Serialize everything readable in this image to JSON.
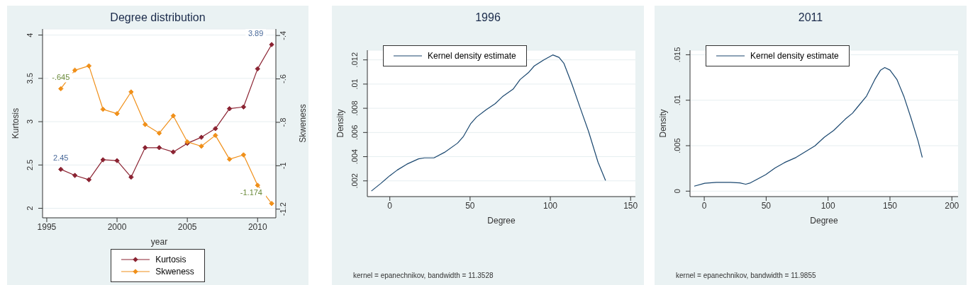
{
  "chart_data": [
    {
      "type": "line",
      "title": "Degree distribution",
      "xlabel": "year",
      "ylabel": "Kurtosis",
      "y2label": "Skweness",
      "x": [
        1996,
        1997,
        1998,
        1999,
        2000,
        2001,
        2002,
        2003,
        2004,
        2005,
        2006,
        2007,
        2008,
        2009,
        2010,
        2011
      ],
      "series": [
        {
          "name": "Kurtosis",
          "color": "#8b2332",
          "values": [
            2.45,
            2.38,
            2.33,
            2.56,
            2.55,
            2.36,
            2.7,
            2.7,
            2.65,
            2.75,
            2.82,
            2.92,
            3.15,
            3.17,
            3.61,
            3.89
          ],
          "value_labels": [
            "2.45",
            null,
            null,
            null,
            null,
            null,
            null,
            null,
            null,
            null,
            null,
            null,
            null,
            null,
            null,
            "3.89"
          ]
        },
        {
          "name": "Skweness",
          "color": "#f0901a",
          "axis": "y2",
          "values": [
            -0.645,
            -0.56,
            -0.54,
            -0.74,
            -0.76,
            -0.66,
            -0.81,
            -0.85,
            -0.77,
            -0.89,
            -0.91,
            -0.86,
            -0.97,
            -0.95,
            -1.09,
            -1.174
          ],
          "value_labels": [
            "-.645",
            null,
            null,
            null,
            null,
            null,
            null,
            null,
            null,
            null,
            null,
            null,
            null,
            null,
            null,
            "-1.174"
          ]
        }
      ],
      "xlim": [
        1994.7,
        2011.3
      ],
      "xticks": [
        1995,
        2000,
        2005,
        2010
      ],
      "ylim": [
        1.89,
        4.07
      ],
      "yticks": [
        2,
        2.5,
        3,
        3.5,
        4
      ],
      "y2lim": [
        -1.24,
        -0.37
      ],
      "y2ticks": [
        {
          "value": -1.2,
          "label": "-1.2"
        },
        {
          "value": -1,
          "label": "-1"
        },
        {
          "value": -0.8,
          "label": "-.8"
        },
        {
          "value": -0.6,
          "label": "-.6"
        },
        {
          "value": -0.4,
          "label": "-.4"
        }
      ],
      "grid": "y",
      "legend": "bottom",
      "marker": "diamond"
    },
    {
      "type": "line",
      "title": "1996",
      "xlabel": "Degree",
      "ylabel": "Density",
      "x": [
        -11.5,
        -5.6,
        0,
        4.7,
        10.6,
        17.9,
        21.6,
        27.5,
        34.1,
        42.2,
        45.9,
        50.3,
        54,
        59.8,
        65.7,
        70.1,
        76.8,
        81.2,
        86.3,
        90,
        95.9,
        101.5,
        105.4,
        108.4,
        113.5,
        118.7,
        123.8,
        129.7,
        134.4
      ],
      "series": [
        {
          "name": "Kernel density estimate",
          "color": "#1a476f",
          "values": [
            0.00116,
            0.00179,
            0.00243,
            0.0029,
            0.00338,
            0.00382,
            0.0039,
            0.0039,
            0.00436,
            0.00512,
            0.00568,
            0.00671,
            0.00727,
            0.00786,
            0.00839,
            0.00895,
            0.00958,
            0.01038,
            0.01094,
            0.0115,
            0.012,
            0.01241,
            0.01221,
            0.01173,
            0.00998,
            0.008,
            0.00609,
            0.00355,
            0.00203
          ]
        }
      ],
      "xlim": [
        -14,
        153
      ],
      "xticks": [
        0,
        50,
        100,
        150
      ],
      "ylim": [
        0.0007,
        0.0128
      ],
      "yticks": [
        {
          "value": 0.002,
          "label": ".002"
        },
        {
          "value": 0.004,
          "label": ".004"
        },
        {
          "value": 0.006,
          "label": ".006"
        },
        {
          "value": 0.008,
          "label": ".008"
        },
        {
          "value": 0.01,
          "label": ".01"
        },
        {
          "value": 0.012,
          "label": ".012"
        }
      ],
      "grid": "y",
      "legend": "top left",
      "annotations": [
        "kernel = epanechnikov, bandwidth = 11.3528"
      ]
    },
    {
      "type": "line",
      "title": "2011",
      "xlabel": "Degree",
      "ylabel": "Density",
      "x": [
        -8.1,
        0.4,
        9.8,
        21.2,
        28.8,
        33.5,
        37.3,
        49.6,
        57.2,
        64.8,
        74.2,
        89.4,
        97,
        104.5,
        114,
        119.7,
        123.5,
        131.1,
        137.7,
        142.4,
        145.8,
        150,
        155.7,
        161.4,
        167,
        172.7,
        176.1
      ],
      "series": [
        {
          "name": "Kernel density estimate",
          "color": "#1a476f",
          "values": [
            0.00055,
            0.00087,
            0.00097,
            0.00097,
            0.00091,
            0.00076,
            0.00091,
            0.00181,
            0.00255,
            0.00314,
            0.00371,
            0.00498,
            0.00593,
            0.00667,
            0.00793,
            0.00857,
            0.0092,
            0.01046,
            0.01226,
            0.01331,
            0.01359,
            0.01331,
            0.01226,
            0.01036,
            0.00803,
            0.00551,
            0.00371
          ]
        }
      ],
      "xlim": [
        -11.5,
        205
      ],
      "xticks": [
        0,
        50,
        100,
        150,
        200
      ],
      "ylim": [
        -0.0006,
        0.0155
      ],
      "yticks": [
        0,
        {
          "value": 0.005,
          "label": ".005"
        },
        {
          "value": 0.01,
          "label": ".01"
        },
        {
          "value": 0.015,
          "label": ".015"
        }
      ],
      "grid": "y",
      "legend": "top left",
      "annotations": [
        "kernel = epanechnikov, bandwidth = 11.9855"
      ]
    }
  ]
}
